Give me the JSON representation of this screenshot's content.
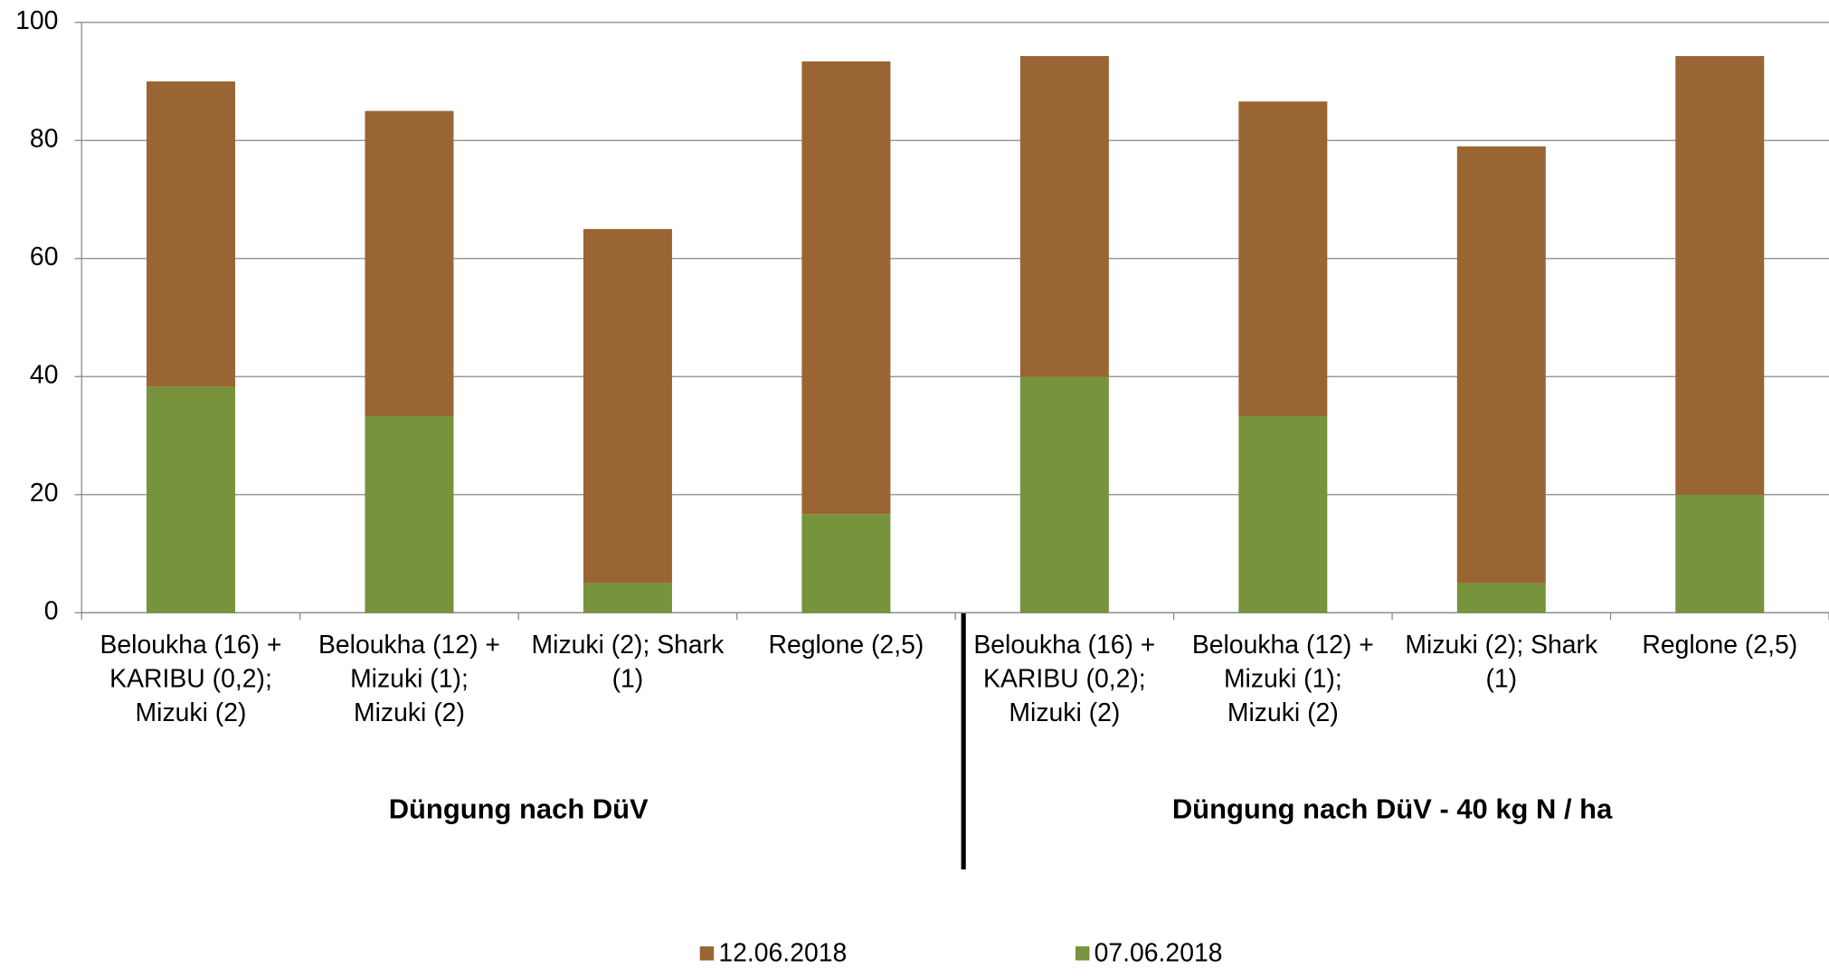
{
  "chart_data": {
    "type": "stacked_bar",
    "groups": [
      "Düngung nach DüV",
      "Düngung nach DüV - 40 kg N / ha"
    ],
    "categories": [
      [
        "Beloukha (16) +",
        "KARIBU (0,2);",
        "Mizuki (2)"
      ],
      [
        "Beloukha (12) +",
        "Mizuki (1);",
        "Mizuki (2)"
      ],
      [
        "Mizuki (2); Shark",
        "(1)"
      ],
      [
        "Reglone (2,5)"
      ],
      [
        "Beloukha (16) +",
        "KARIBU (0,2);",
        "Mizuki (2)"
      ],
      [
        "Beloukha (12) +",
        "Mizuki (1);",
        "Mizuki (2)"
      ],
      [
        "Mizuki (2); Shark",
        "(1)"
      ],
      [
        "Reglone (2,5)"
      ]
    ],
    "series": [
      {
        "name": "12.06.2018",
        "color": "#996633",
        "values": [
          51.7,
          51.7,
          60,
          76.7,
          54.3,
          53.3,
          74,
          74.3
        ]
      },
      {
        "name": "07.06.2018",
        "color": "#77933c",
        "values": [
          38.3,
          33.3,
          5,
          16.7,
          40,
          33.3,
          5,
          20
        ]
      }
    ],
    "ylim": [
      0,
      100
    ],
    "yticks": [
      0,
      20,
      40,
      60,
      80,
      100
    ],
    "grid": true,
    "legend": "bottom"
  }
}
